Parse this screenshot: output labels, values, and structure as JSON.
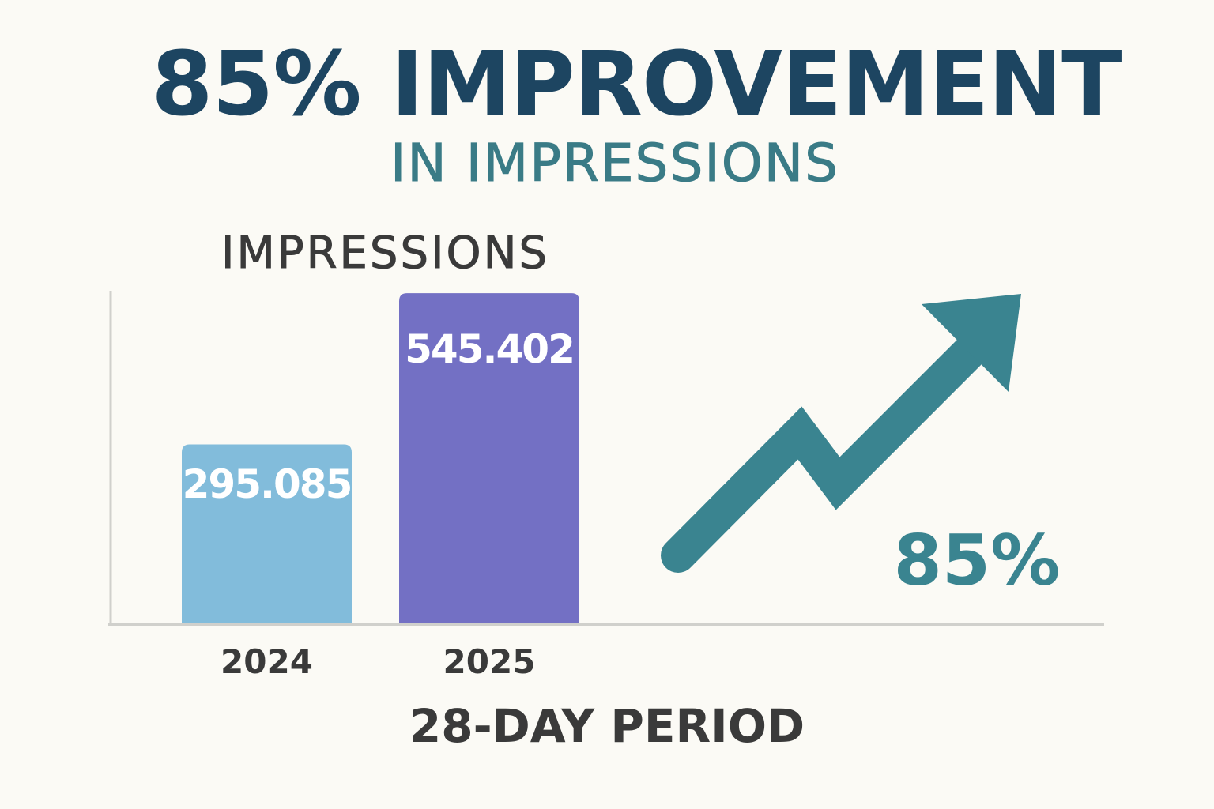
{
  "header": {
    "title": "85% IMPROVEMENT",
    "subtitle": "IN IMPRESSIONS"
  },
  "chart_data": {
    "type": "bar",
    "ylabel": "IMPRESSIONS",
    "xlabel": "28-DAY PERIOD",
    "categories": [
      "2024",
      "2025"
    ],
    "values": [
      295085,
      545402
    ],
    "value_labels": [
      "295.085",
      "545.402"
    ],
    "colors": [
      "#82bcdb",
      "#7370c4"
    ],
    "ylim": [
      0,
      560000
    ],
    "grid": false,
    "annotation": {
      "label": "85%",
      "icon": "trend-up-arrow-icon",
      "color": "#3a8490"
    }
  }
}
